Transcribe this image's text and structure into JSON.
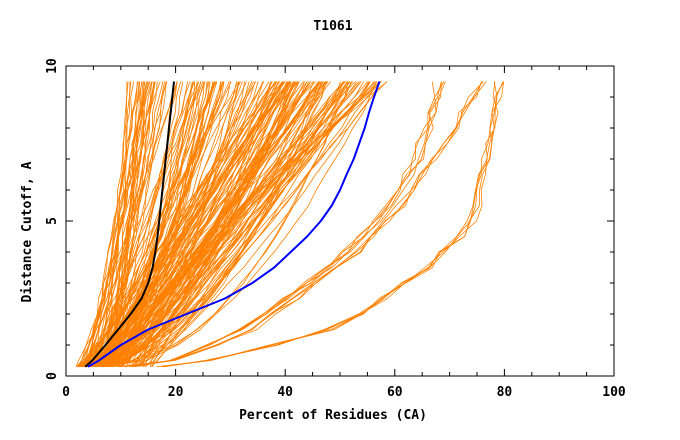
{
  "chart_data": {
    "type": "line",
    "title": "T1061",
    "xlabel": "Percent of Residues (CA)",
    "ylabel": "Distance Cutoff, A",
    "xlim": [
      0,
      100
    ],
    "ylim": [
      0,
      10
    ],
    "x_ticks": [
      0,
      20,
      40,
      60,
      80,
      100
    ],
    "y_ticks": [
      0,
      5,
      10
    ],
    "grid": false,
    "colors": {
      "bundle": "#ff8000",
      "black_series": "#000000",
      "blue_series": "#0000ff"
    },
    "curve_y": [
      0.3,
      0.5,
      1,
      1.5,
      2,
      2.5,
      3,
      3.5,
      4,
      4.5,
      5,
      5.5,
      6,
      6.5,
      7,
      7.5,
      8,
      8.5,
      9,
      9.5
    ],
    "series": [
      {
        "color": "black_series",
        "x": [
          3.5,
          4.8,
          7.2,
          9.5,
          11.8,
          13.8,
          15.0,
          15.8,
          16.3,
          16.7,
          17.0,
          17.3,
          17.6,
          17.9,
          18.2,
          18.5,
          18.8,
          19.1,
          19.4,
          19.7
        ]
      },
      {
        "color": "blue_series",
        "x": [
          4.0,
          6.0,
          10.0,
          15.0,
          22.0,
          29.0,
          34.0,
          38.0,
          41.0,
          44.0,
          46.5,
          48.5,
          50.0,
          51.2,
          52.5,
          53.5,
          54.5,
          55.3,
          56.2,
          57.2
        ]
      }
    ],
    "bundle_groups": [
      {
        "count": 150,
        "x_start_range": [
          2,
          9
        ],
        "x_end_range": [
          11,
          57
        ],
        "shape_exponent_range": [
          0.45,
          1.05
        ]
      },
      {
        "count": 50,
        "x_start_range": [
          6,
          16
        ],
        "x_end_range": [
          38,
          59
        ],
        "shape_exponent_range": [
          0.75,
          1.35
        ]
      },
      {
        "count": 5,
        "x": [
          12,
          19,
          26,
          32,
          36,
          40,
          44,
          48,
          51,
          54,
          57,
          59,
          61,
          62.5,
          64,
          65,
          66,
          67,
          67.5,
          68
        ]
      }
    ],
    "bundle_families": [
      {
        "count": 4,
        "x": [
          10,
          20,
          28,
          34,
          38,
          42,
          46,
          50,
          53,
          56,
          58.5,
          61,
          63,
          65,
          67,
          69,
          71,
          72.5,
          74,
          76
        ]
      },
      {
        "count": 5,
        "x": [
          17,
          26,
          38,
          48,
          54,
          58,
          62,
          66,
          69,
          72,
          74,
          75,
          75.5,
          76,
          76.5,
          77,
          77.5,
          78,
          78.5,
          79
        ]
      }
    ]
  }
}
